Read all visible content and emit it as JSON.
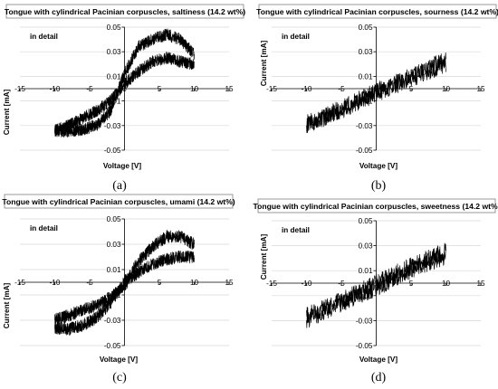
{
  "colors": {
    "trace": "#000000",
    "grid": "#d9d9d9",
    "axis": "#000000",
    "title_border": "#7f7f7f"
  },
  "chart_data": [
    {
      "id": "a",
      "type": "line",
      "title": "Tongue with cylindrical Pacinian corpuscles, saltiness (14.2 wt%)",
      "annotation": "in detail",
      "caption": "(a)",
      "xlabel": "Voltage  [V]",
      "ylabel": "Current  [mA]",
      "xlim": [
        -15,
        15
      ],
      "ylim": [
        -0.05,
        0.05
      ],
      "xticks": [
        "-15",
        "-10",
        "-5",
        "0",
        "5",
        "10",
        "15"
      ],
      "yticks": [
        "-0.05",
        "-0.03",
        "-0.01",
        "0.01",
        "0.03",
        "0.05"
      ],
      "grid": true,
      "series": [
        {
          "x": [
            -10,
            -8,
            -6,
            -4,
            -2,
            0,
            2,
            4,
            6,
            8,
            10
          ],
          "y": [
            -0.034,
            -0.035,
            -0.033,
            -0.03,
            -0.018,
            0.012,
            0.034,
            0.04,
            0.044,
            0.04,
            0.028
          ],
          "noise": 0.005
        },
        {
          "x": [
            10,
            8,
            6,
            4,
            2,
            0,
            -2,
            -4,
            -6,
            -8,
            -10
          ],
          "y": [
            0.02,
            0.022,
            0.025,
            0.022,
            0.014,
            0.004,
            -0.01,
            -0.018,
            -0.024,
            -0.03,
            -0.034
          ],
          "noise": 0.005
        }
      ]
    },
    {
      "id": "b",
      "type": "line",
      "title": "Tongue with cylindrical Pacinian corpuscles, sourness (14.2 wt%)",
      "annotation": "in detail",
      "caption": "(b)",
      "xlabel": "Voltage  [V]",
      "ylabel": "Current  [mA]",
      "xlim": [
        -15,
        15
      ],
      "ylim": [
        -0.05,
        0.05
      ],
      "xticks": [
        "-15",
        "-10",
        "-5",
        "0",
        "5",
        "10",
        "15"
      ],
      "yticks": [
        "-0.05",
        "-0.03",
        "-0.01",
        "0.01",
        "0.03",
        "0.05"
      ],
      "grid": true,
      "series": [
        {
          "x": [
            -10,
            -5,
            0,
            5,
            10
          ],
          "y": [
            -0.028,
            -0.016,
            -0.002,
            0.01,
            0.024
          ],
          "noise": 0.007
        },
        {
          "x": [
            10,
            5,
            0,
            -5,
            -10
          ],
          "y": [
            0.02,
            0.008,
            -0.004,
            -0.018,
            -0.03
          ],
          "noise": 0.007
        }
      ]
    },
    {
      "id": "c",
      "type": "line",
      "title": "Tongue with cylindrical Pacinian corpuscles, umami (14.2 wt%)",
      "annotation": "in detail",
      "caption": "(c)",
      "xlabel": "Voltage  [V]",
      "ylabel": "Current  [mA]",
      "xlim": [
        -15,
        15
      ],
      "ylim": [
        -0.05,
        0.05
      ],
      "xticks": [
        "-15",
        "-10",
        "-5",
        "0",
        "5",
        "10",
        "15"
      ],
      "yticks": [
        "-0.05",
        "-0.03",
        "-0.01",
        "0.01",
        "0.03",
        "0.05"
      ],
      "grid": true,
      "series": [
        {
          "x": [
            -10,
            -8,
            -6,
            -4,
            -2,
            0,
            2,
            4,
            6,
            8,
            10
          ],
          "y": [
            -0.036,
            -0.037,
            -0.034,
            -0.028,
            -0.016,
            0.0,
            0.016,
            0.028,
            0.036,
            0.036,
            0.03
          ],
          "noise": 0.005
        },
        {
          "x": [
            10,
            8,
            6,
            4,
            2,
            0,
            -2,
            -4,
            -6,
            -8,
            -10
          ],
          "y": [
            0.02,
            0.02,
            0.018,
            0.014,
            0.008,
            -0.002,
            -0.012,
            -0.018,
            -0.022,
            -0.026,
            -0.03
          ],
          "noise": 0.005
        }
      ]
    },
    {
      "id": "d",
      "type": "line",
      "title": "Tongue with cylindrical Pacinian corpuscles, sweetness (14.2 wt%)",
      "annotation": "in detail",
      "caption": "(d)",
      "xlabel": "Voltage  [V]",
      "ylabel": "Current  [mA]",
      "xlim": [
        -15,
        15
      ],
      "ylim": [
        -0.05,
        0.05
      ],
      "xticks": [
        "-15",
        "-10",
        "-5",
        "0",
        "5",
        "10",
        "15"
      ],
      "yticks": [
        "-0.05",
        "-0.03",
        "-0.01",
        "0.01",
        "0.03",
        "0.05"
      ],
      "grid": true,
      "series": [
        {
          "x": [
            -10,
            -5,
            0,
            5,
            10
          ],
          "y": [
            -0.026,
            -0.014,
            0.0,
            0.014,
            0.026
          ],
          "noise": 0.007
        },
        {
          "x": [
            10,
            5,
            0,
            -5,
            -10
          ],
          "y": [
            0.022,
            0.01,
            -0.004,
            -0.016,
            -0.03
          ],
          "noise": 0.007
        }
      ]
    }
  ]
}
